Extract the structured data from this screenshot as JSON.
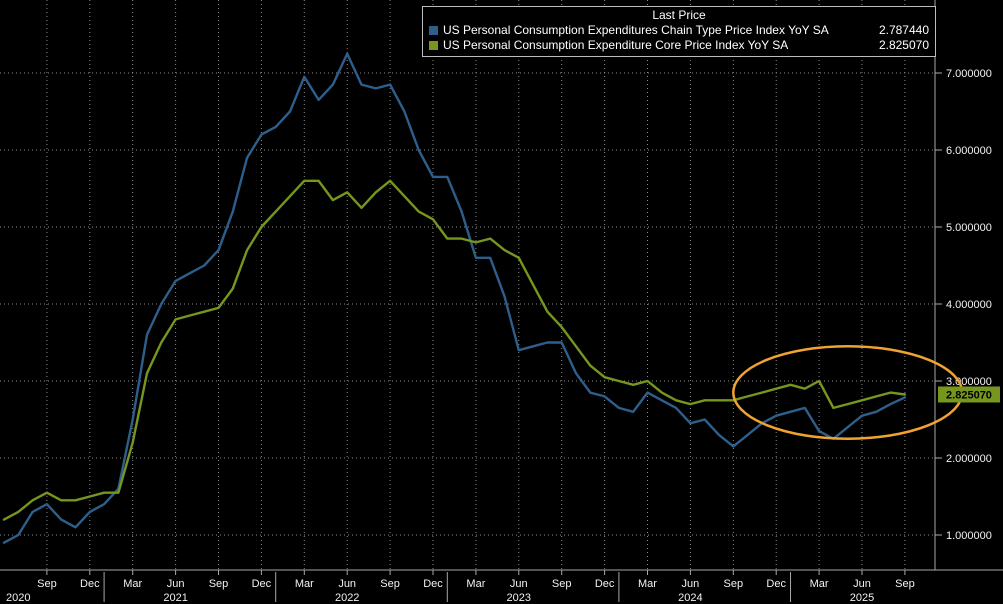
{
  "legend": {
    "title": "Last Price",
    "items": [
      {
        "label": "US Personal Consumption Expenditures Chain Type Price Index YoY SA",
        "value": "2.787440",
        "color": "#2e5f8c"
      },
      {
        "label": "US Personal Consumption Expenditure Core Price Index YoY SA",
        "value": "2.825070",
        "color": "#76961e"
      }
    ]
  },
  "chart_data": {
    "type": "line",
    "title": "Last Price",
    "frequency": "monthly",
    "x_start_month": "2020-06",
    "series": [
      {
        "key": "headline-pce",
        "name": "US Personal Consumption Expenditures Chain Type Price Index YoY SA",
        "color": "#2e5f8c",
        "last_price": 2.78744,
        "values": [
          0.9,
          1.0,
          1.3,
          1.4,
          1.2,
          1.1,
          1.3,
          1.4,
          1.6,
          2.5,
          3.6,
          4.0,
          4.3,
          4.4,
          4.5,
          4.7,
          5.2,
          5.9,
          6.2,
          6.3,
          6.5,
          6.95,
          6.65,
          6.85,
          7.25,
          6.85,
          6.8,
          6.85,
          6.5,
          6.0,
          5.65,
          5.65,
          5.2,
          4.6,
          4.6,
          4.1,
          3.4,
          3.45,
          3.5,
          3.5,
          3.1,
          2.85,
          2.8,
          2.65,
          2.6,
          2.85,
          2.75,
          2.65,
          2.45,
          2.5,
          2.3,
          2.15,
          2.3,
          2.45,
          2.55,
          2.6,
          2.65,
          2.35,
          2.25,
          2.4,
          2.55,
          2.6,
          2.7,
          2.78744
        ]
      },
      {
        "key": "core-pce",
        "name": "US Personal Consumption Expenditure Core Price Index YoY SA",
        "color": "#76961e",
        "last_price": 2.82507,
        "values": [
          1.2,
          1.3,
          1.45,
          1.55,
          1.45,
          1.45,
          1.5,
          1.55,
          1.55,
          2.2,
          3.1,
          3.5,
          3.8,
          3.85,
          3.9,
          3.95,
          4.2,
          4.7,
          5.0,
          5.2,
          5.4,
          5.6,
          5.6,
          5.35,
          5.45,
          5.25,
          5.45,
          5.6,
          5.4,
          5.2,
          5.1,
          4.85,
          4.85,
          4.8,
          4.85,
          4.7,
          4.6,
          4.25,
          3.9,
          3.7,
          3.45,
          3.2,
          3.05,
          3.0,
          2.95,
          3.0,
          2.85,
          2.75,
          2.7,
          2.75,
          2.75,
          2.75,
          2.8,
          2.85,
          2.9,
          2.95,
          2.9,
          3.0,
          2.65,
          2.7,
          2.75,
          2.8,
          2.85,
          2.82507
        ]
      }
    ],
    "y_axis": {
      "min": 0,
      "max": 7.7,
      "ticks": [
        {
          "value": 7,
          "label": "7.000000"
        },
        {
          "value": 6,
          "label": "6.000000"
        },
        {
          "value": 5,
          "label": "5.000000"
        },
        {
          "value": 4,
          "label": "4.000000"
        },
        {
          "value": 3,
          "label": "3.000000"
        },
        {
          "value": 2,
          "label": "2.000000"
        },
        {
          "value": 1,
          "label": "1.000000"
        }
      ]
    },
    "x_ticks": [
      {
        "month": "2020-09",
        "label": "Sep"
      },
      {
        "month": "2020-12",
        "label": "Dec"
      },
      {
        "month": "2021-03",
        "label": "Mar"
      },
      {
        "month": "2021-06",
        "label": "Jun"
      },
      {
        "month": "2021-09",
        "label": "Sep"
      },
      {
        "month": "2021-12",
        "label": "Dec"
      },
      {
        "month": "2022-03",
        "label": "Mar"
      },
      {
        "month": "2022-06",
        "label": "Jun"
      },
      {
        "month": "2022-09",
        "label": "Sep"
      },
      {
        "month": "2022-12",
        "label": "Dec"
      },
      {
        "month": "2023-03",
        "label": "Mar"
      },
      {
        "month": "2023-06",
        "label": "Jun"
      },
      {
        "month": "2023-09",
        "label": "Sep"
      },
      {
        "month": "2023-12",
        "label": "Dec"
      },
      {
        "month": "2024-03",
        "label": "Mar"
      },
      {
        "month": "2024-06",
        "label": "Jun"
      },
      {
        "month": "2024-09",
        "label": "Sep"
      },
      {
        "month": "2024-12",
        "label": "Dec"
      },
      {
        "month": "2025-03",
        "label": "Mar"
      },
      {
        "month": "2025-06",
        "label": "Jun"
      },
      {
        "month": "2025-09",
        "label": "Sep"
      }
    ],
    "year_labels": [
      {
        "month": "2020-07",
        "label": "2020"
      },
      {
        "month": "2021-06",
        "label": "2021"
      },
      {
        "month": "2022-06",
        "label": "2022"
      },
      {
        "month": "2023-06",
        "label": "2023"
      },
      {
        "month": "2024-06",
        "label": "2024"
      },
      {
        "month": "2025-06",
        "label": "2025"
      }
    ],
    "year_separator_months": [
      "2021-01",
      "2022-01",
      "2023-01",
      "2024-01",
      "2025-01"
    ],
    "annotation_ellipse": {
      "x_from_month": "2024-09",
      "x_to_month": "2026-01",
      "value_from": 2.25,
      "value_to": 3.45,
      "color": "#f0a330"
    },
    "last_price_badge": {
      "label": "2.825070",
      "value": 2.82507,
      "bg": "#76961e",
      "text_color": "#000000"
    }
  }
}
